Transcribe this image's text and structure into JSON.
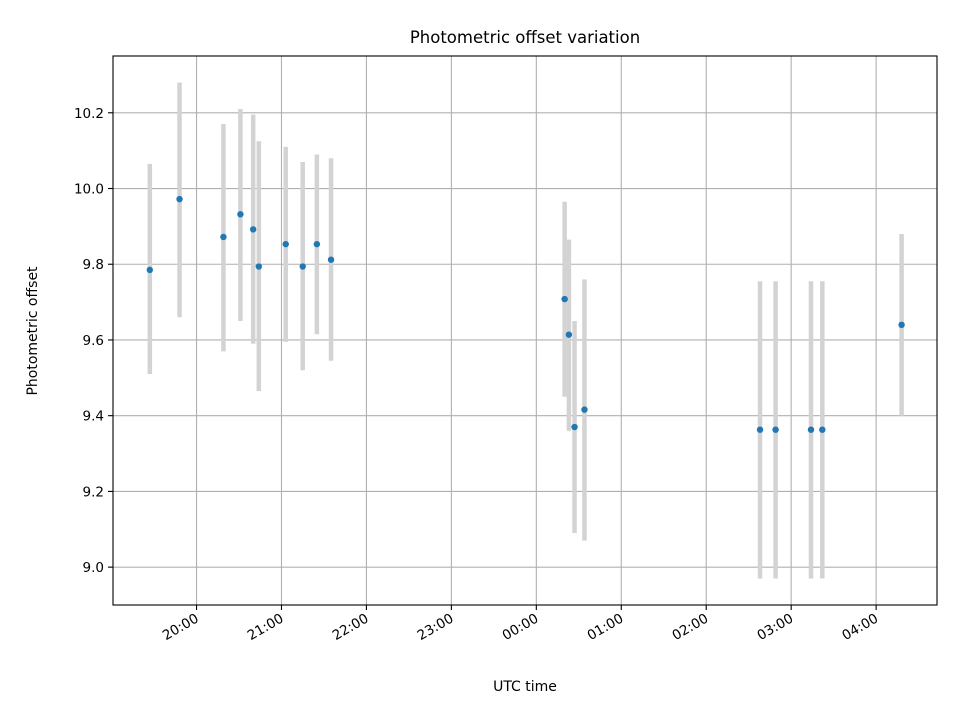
{
  "chart_data": {
    "type": "scatter",
    "title": "Photometric offset variation",
    "xlabel": "UTC time",
    "ylabel": "Photometric offset",
    "x_axis_kind": "time",
    "x_tick_labels": [
      "20:00",
      "21:00",
      "22:00",
      "23:00",
      "00:00",
      "01:00",
      "02:00",
      "03:00",
      "04:00"
    ],
    "x_tick_hours": [
      20,
      21,
      22,
      23,
      24,
      25,
      26,
      27,
      28
    ],
    "xlim": [
      "19:01",
      "04:43"
    ],
    "ylim": [
      8.9,
      10.35
    ],
    "y_ticks": [
      9.0,
      9.2,
      9.4,
      9.6,
      9.8,
      10.0,
      10.2
    ],
    "y_tick_labels": [
      "9.0",
      "9.2",
      "9.4",
      "9.6",
      "9.8",
      "10.0",
      "10.2"
    ],
    "grid": true,
    "legend": "none",
    "colors": {
      "points": "#1f77b4",
      "error_bars": "#d3d3d3",
      "grid": "#b0b0b0"
    },
    "series": [
      {
        "points": [
          {
            "x": "19:27",
            "y": 9.785,
            "y_low": 9.51,
            "y_high": 10.065
          },
          {
            "x": "19:48",
            "y": 9.972,
            "y_low": 9.66,
            "y_high": 10.28
          },
          {
            "x": "20:19",
            "y": 9.872,
            "y_low": 9.57,
            "y_high": 10.17
          },
          {
            "x": "20:31",
            "y": 9.932,
            "y_low": 9.65,
            "y_high": 10.21
          },
          {
            "x": "20:40",
            "y": 9.892,
            "y_low": 9.59,
            "y_high": 10.195
          },
          {
            "x": "20:44",
            "y": 9.794,
            "y_low": 9.465,
            "y_high": 10.125
          },
          {
            "x": "21:03",
            "y": 9.853,
            "y_low": 9.595,
            "y_high": 10.11
          },
          {
            "x": "21:15",
            "y": 9.794,
            "y_low": 9.52,
            "y_high": 10.07
          },
          {
            "x": "21:25",
            "y": 9.853,
            "y_low": 9.615,
            "y_high": 10.09
          },
          {
            "x": "21:35",
            "y": 9.812,
            "y_low": 9.545,
            "y_high": 10.08
          },
          {
            "x": "00:20",
            "y": 9.708,
            "y_low": 9.45,
            "y_high": 9.965
          },
          {
            "x": "00:23",
            "y": 9.614,
            "y_low": 9.36,
            "y_high": 9.865
          },
          {
            "x": "00:27",
            "y": 9.37,
            "y_low": 9.09,
            "y_high": 9.65
          },
          {
            "x": "00:34",
            "y": 9.416,
            "y_low": 9.07,
            "y_high": 9.76
          },
          {
            "x": "02:38",
            "y": 9.363,
            "y_low": 8.97,
            "y_high": 9.755
          },
          {
            "x": "02:49",
            "y": 9.363,
            "y_low": 8.97,
            "y_high": 9.755
          },
          {
            "x": "03:14",
            "y": 9.363,
            "y_low": 8.97,
            "y_high": 9.755
          },
          {
            "x": "03:22",
            "y": 9.363,
            "y_low": 8.97,
            "y_high": 9.755
          },
          {
            "x": "04:18",
            "y": 9.64,
            "y_low": 9.4,
            "y_high": 9.88
          }
        ]
      }
    ]
  }
}
